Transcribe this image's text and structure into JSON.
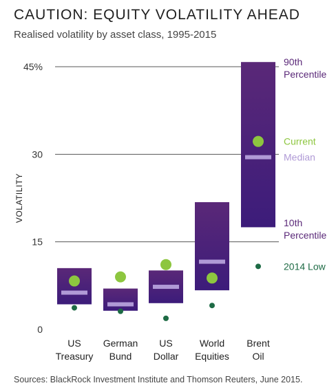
{
  "title": "CAUTION: EQUITY VOLATILITY AHEAD",
  "subtitle": "Realised volatility by asset class, 1995-2015",
  "source": "Sources: BlackRock Investment Institute and Thomson Reuters, June 2015.",
  "colors": {
    "bar_top": "#5a2878",
    "bar_bottom": "#3c1c7a",
    "median": "#b09ad6",
    "current": "#8dc63f",
    "low": "#1e6b45",
    "legend_percentile": "#5a2878",
    "grid": "#555555"
  },
  "chart_data": {
    "type": "range-bar",
    "ylabel": "VOLATILITY",
    "ylim": [
      0,
      45
    ],
    "y_ticks": [
      {
        "value": 0,
        "label": "0"
      },
      {
        "value": 15,
        "label": "15"
      },
      {
        "value": 30,
        "label": "30"
      },
      {
        "value": 45,
        "label": "45%"
      }
    ],
    "categories": [
      {
        "line1": "US",
        "line2": "Treasury",
        "p10": 4.3,
        "p90": 10.5,
        "median": 6.3,
        "current": 8.3,
        "low_2014": 3.7
      },
      {
        "line1": "German",
        "line2": "Bund",
        "p10": 3.2,
        "p90": 7.0,
        "median": 4.3,
        "current": 9.0,
        "low_2014": 3.1
      },
      {
        "line1": "US",
        "line2": "Dollar",
        "p10": 4.5,
        "p90": 10.1,
        "median": 7.3,
        "current": 11.1,
        "low_2014": 1.9
      },
      {
        "line1": "World",
        "line2": "Equities",
        "p10": 6.7,
        "p90": 21.8,
        "median": 11.6,
        "current": 8.8,
        "low_2014": 4.1
      },
      {
        "line1": "Brent",
        "line2": "Oil",
        "p10": 17.5,
        "p90": 45.8,
        "median": 29.5,
        "current": 32.2,
        "low_2014": 10.8
      }
    ],
    "legend": {
      "p90_line1": "90th",
      "p90_line2": "Percentile",
      "current": "Current",
      "median": "Median",
      "p10_line1": "10th",
      "p10_line2": "Percentile",
      "low": "2014 Low"
    }
  }
}
